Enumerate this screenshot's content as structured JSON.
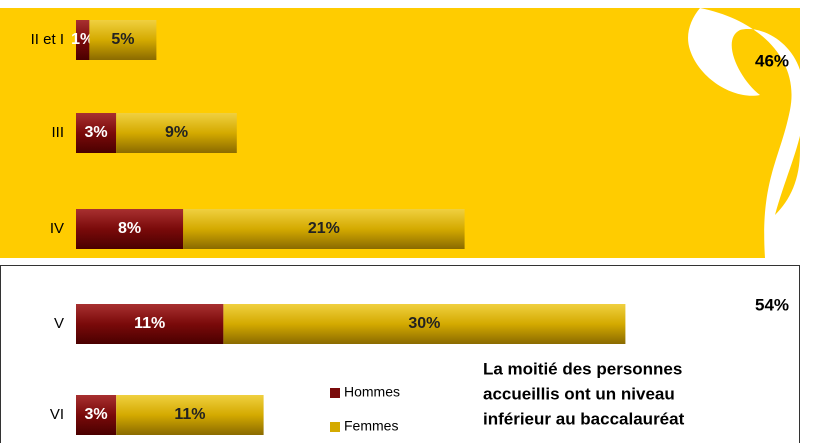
{
  "chart_data": {
    "type": "stacked-barh",
    "categories": [
      "II et I",
      "III",
      "IV",
      "V",
      "VI"
    ],
    "series": [
      {
        "name": "Hommes",
        "color": "#7a0a0a",
        "values": [
          1,
          3,
          8,
          11,
          3
        ],
        "value_labels": [
          "1%",
          "3%",
          "8%",
          "11%",
          "3%"
        ]
      },
      {
        "name": "Femmes",
        "color": "#d4aa00",
        "values": [
          5,
          9,
          21,
          30,
          11
        ],
        "value_labels": [
          "5%",
          "9%",
          "21%",
          "30%",
          "11%"
        ]
      }
    ],
    "annotations": [
      "46%",
      "54%"
    ],
    "note": [
      "La moitié des personnes",
      "accueillis ont un niveau",
      "inférieur au baccalauréat"
    ]
  }
}
